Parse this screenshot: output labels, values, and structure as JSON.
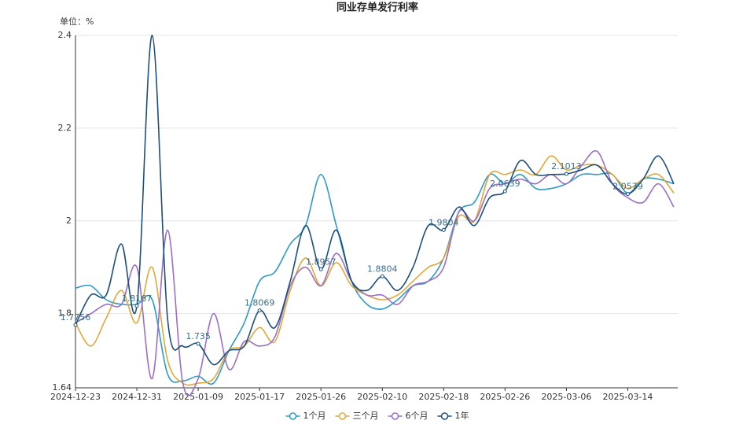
{
  "chart_data": {
    "type": "line",
    "title": "同业存单发行利率",
    "unit_label": "单位：%",
    "categories": [
      "2024-12-23",
      null,
      null,
      null,
      "2024-12-31",
      null,
      null,
      null,
      "2025-01-09",
      null,
      null,
      null,
      "2025-01-17",
      null,
      null,
      null,
      "2025-01-26",
      null,
      null,
      null,
      "2025-02-10",
      null,
      null,
      null,
      "2025-02-18",
      null,
      null,
      null,
      "2025-02-26",
      null,
      null,
      null,
      "2025-03-06",
      null,
      null,
      null,
      "2025-03-14",
      null,
      null,
      null
    ],
    "series": [
      {
        "name": "1个月",
        "color": "#2e9ac6",
        "values": [
          1.855,
          1.86,
          1.83,
          1.82,
          1.82,
          1.83,
          1.67,
          1.655,
          1.665,
          1.65,
          1.72,
          1.78,
          1.87,
          1.89,
          1.95,
          1.99,
          2.1,
          1.99,
          1.87,
          1.82,
          1.81,
          1.83,
          1.86,
          1.87,
          1.92,
          2.02,
          2.04,
          2.1,
          2.08,
          2.1,
          2.07,
          2.07,
          2.08,
          2.1,
          2.1,
          2.1,
          2.06,
          2.09,
          2.09,
          2.08
        ]
      },
      {
        "name": "三个月",
        "color": "#e0a83c",
        "values": [
          1.78,
          1.73,
          1.79,
          1.85,
          1.78,
          1.9,
          1.7,
          1.65,
          1.65,
          1.66,
          1.72,
          1.73,
          1.77,
          1.74,
          1.85,
          1.92,
          1.86,
          1.91,
          1.86,
          1.84,
          1.83,
          1.84,
          1.87,
          1.9,
          1.92,
          2.01,
          2.0,
          2.1,
          2.1,
          2.11,
          2.1,
          2.14,
          2.11,
          2.12,
          2.12,
          2.1,
          2.07,
          2.09,
          2.1,
          2.06
        ]
      },
      {
        "name": "6个月",
        "color": "#9b6fc8",
        "values": [
          1.78,
          1.8,
          1.82,
          1.82,
          1.9,
          1.66,
          1.98,
          1.65,
          1.66,
          1.8,
          1.68,
          1.74,
          1.73,
          1.75,
          1.86,
          1.9,
          1.86,
          1.93,
          1.87,
          1.84,
          1.84,
          1.82,
          1.86,
          1.87,
          1.9,
          2.02,
          2.0,
          2.07,
          2.08,
          2.09,
          2.08,
          2.1,
          2.08,
          2.12,
          2.15,
          2.08,
          2.05,
          2.04,
          2.08,
          2.03
        ]
      },
      {
        "name": "1年",
        "color": "#1d4e7c",
        "values": [
          1.7756,
          1.84,
          1.84,
          1.95,
          1.8167,
          2.4,
          1.79,
          1.73,
          1.735,
          1.69,
          1.72,
          1.73,
          1.8069,
          1.77,
          1.87,
          1.99,
          1.8957,
          1.98,
          1.87,
          1.85,
          1.8804,
          1.85,
          1.9,
          1.99,
          1.9804,
          2.03,
          1.99,
          2.05,
          2.0639,
          2.13,
          2.1,
          2.1,
          2.1013,
          2.11,
          2.12,
          2.08,
          2.0579,
          2.09,
          2.14,
          2.08
        ],
        "value_labels": [
          "1.7756",
          null,
          null,
          null,
          "1.8167",
          null,
          null,
          null,
          "1.735",
          null,
          null,
          null,
          "1.8069",
          null,
          null,
          null,
          "1.8957",
          null,
          null,
          null,
          "1.8804",
          null,
          null,
          null,
          "1.9804",
          null,
          null,
          null,
          "2.0639",
          null,
          null,
          null,
          "2.1013",
          null,
          null,
          null,
          "2.0579",
          null,
          null,
          null
        ]
      }
    ],
    "ylim": [
      1.64,
      2.4
    ],
    "yticks": [
      1.64,
      1.8,
      2,
      2.2,
      2.4
    ],
    "grid": true,
    "smooth": true,
    "legend": "bottom"
  }
}
